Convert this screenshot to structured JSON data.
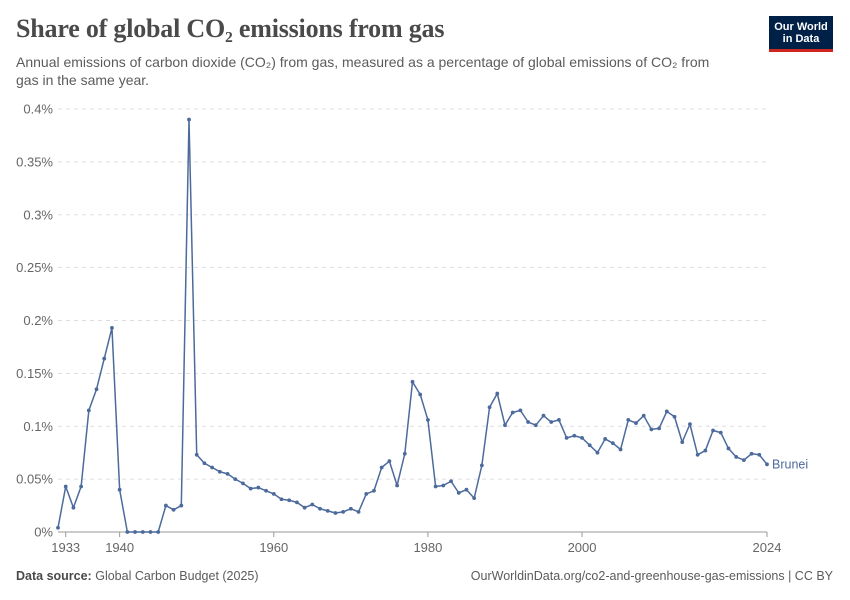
{
  "title": "Share of global CO₂ emissions from gas",
  "subtitle": "Annual emissions of carbon dioxide (CO₂) from gas, measured as a percentage of global emissions of CO₂ from gas in the same year.",
  "logo": {
    "line1": "Our World",
    "line2": "in Data"
  },
  "footer": {
    "source_label": "Data source:",
    "source": "Global Carbon Budget (2025)",
    "link": "OurWorldinData.org/co2-and-greenhouse-gas-emissions | CC BY"
  },
  "colors": {
    "series": "#4c6a9c",
    "grid": "#dddddd",
    "axis": "#999999"
  },
  "chart_data": {
    "type": "line",
    "xlim": [
      1932,
      2024
    ],
    "ylim": [
      0,
      0.4
    ],
    "x_ticks": [
      1933,
      1940,
      1960,
      1980,
      2000,
      2024
    ],
    "y_ticks": [
      0,
      0.05,
      0.1,
      0.15,
      0.2,
      0.25,
      0.3,
      0.35,
      0.4
    ],
    "y_tick_labels": [
      "0%",
      "0.05%",
      "0.1%",
      "0.15%",
      "0.2%",
      "0.25%",
      "0.3%",
      "0.35%",
      "0.4%"
    ],
    "grid": "horizontal dashed",
    "series": [
      {
        "name": "Brunei",
        "x": [
          1932,
          1933,
          1934,
          1935,
          1936,
          1937,
          1938,
          1939,
          1940,
          1941,
          1942,
          1943,
          1944,
          1945,
          1946,
          1947,
          1948,
          1949,
          1950,
          1951,
          1952,
          1953,
          1954,
          1955,
          1956,
          1957,
          1958,
          1959,
          1960,
          1961,
          1962,
          1963,
          1964,
          1965,
          1966,
          1967,
          1968,
          1969,
          1970,
          1971,
          1972,
          1973,
          1974,
          1975,
          1976,
          1977,
          1978,
          1979,
          1980,
          1981,
          1982,
          1983,
          1984,
          1985,
          1986,
          1987,
          1988,
          1989,
          1990,
          1991,
          1992,
          1993,
          1994,
          1995,
          1996,
          1997,
          1998,
          1999,
          2000,
          2001,
          2002,
          2003,
          2004,
          2005,
          2006,
          2007,
          2008,
          2009,
          2010,
          2011,
          2012,
          2013,
          2014,
          2015,
          2016,
          2017,
          2018,
          2019,
          2020,
          2021,
          2022,
          2023,
          2024
        ],
        "y": [
          0.004,
          0.043,
          0.023,
          0.043,
          0.115,
          0.135,
          0.164,
          0.193,
          0.04,
          0.0,
          0.0,
          0.0,
          0.0,
          0.0,
          0.025,
          0.021,
          0.025,
          0.39,
          0.073,
          0.065,
          0.061,
          0.057,
          0.055,
          0.05,
          0.046,
          0.041,
          0.042,
          0.039,
          0.036,
          0.031,
          0.03,
          0.028,
          0.023,
          0.026,
          0.022,
          0.02,
          0.018,
          0.019,
          0.022,
          0.019,
          0.036,
          0.039,
          0.061,
          0.067,
          0.044,
          0.074,
          0.142,
          0.13,
          0.106,
          0.043,
          0.044,
          0.048,
          0.037,
          0.04,
          0.032,
          0.063,
          0.118,
          0.131,
          0.101,
          0.113,
          0.115,
          0.104,
          0.101,
          0.11,
          0.104,
          0.106,
          0.089,
          0.091,
          0.089,
          0.082,
          0.075,
          0.088,
          0.084,
          0.078,
          0.106,
          0.103,
          0.11,
          0.097,
          0.098,
          0.114,
          0.109,
          0.085,
          0.102,
          0.073,
          0.077,
          0.096,
          0.094,
          0.079,
          0.071,
          0.068,
          0.074,
          0.073,
          0.064
        ]
      }
    ]
  }
}
